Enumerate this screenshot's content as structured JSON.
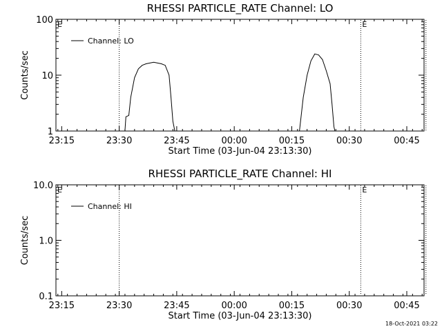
{
  "footer": {
    "timestamp": "18-Oct-2021 03:22"
  },
  "chart_data": [
    {
      "type": "line",
      "title": "RHESSI PARTICLE_RATE Channel: LO",
      "xlabel": "Start Time (03-Jun-04 23:13:30)",
      "ylabel": "Counts/sec",
      "yscale": "log",
      "ylim": [
        1,
        100
      ],
      "yticks": [
        "1",
        "10",
        "100"
      ],
      "xlim_minutes_from_23_15": [
        -1.5,
        94.5
      ],
      "xticks": [
        "23:15",
        "23:30",
        "23:45",
        "00:00",
        "00:15",
        "00:30",
        "00:45"
      ],
      "legend": {
        "label": "Channel: LO",
        "placement": "top-left"
      },
      "marker_lines": [
        {
          "time": "23:30",
          "flag": ""
        },
        {
          "time": "00:33",
          "flag": "E"
        },
        {
          "time": "00:50",
          "flag": ""
        }
      ],
      "corner_flag": "E",
      "series": [
        {
          "name": "Channel: LO",
          "points": [
            [
              "23:31:30",
              1.0
            ],
            [
              "23:31:45",
              1.8
            ],
            [
              "23:32:30",
              1.9
            ],
            [
              "23:33:00",
              4.0
            ],
            [
              "23:34:00",
              9.0
            ],
            [
              "23:35:00",
              13.0
            ],
            [
              "23:36:00",
              15.0
            ],
            [
              "23:37:00",
              16.0
            ],
            [
              "23:38:00",
              16.5
            ],
            [
              "23:39:00",
              17.0
            ],
            [
              "23:40:00",
              16.5
            ],
            [
              "23:41:00",
              16.0
            ],
            [
              "23:42:00",
              15.0
            ],
            [
              "23:43:00",
              10.0
            ],
            [
              "23:43:30",
              4.0
            ],
            [
              "23:44:00",
              1.5
            ],
            [
              "23:44:30",
              1.0
            ]
          ]
        },
        {
          "name": "Channel: LO",
          "points": [
            [
              "00:17:00",
              1.0
            ],
            [
              "00:18:00",
              4.0
            ],
            [
              "00:19:00",
              10.0
            ],
            [
              "00:20:00",
              18.0
            ],
            [
              "00:21:00",
              24.0
            ],
            [
              "00:22:00",
              23.0
            ],
            [
              "00:23:00",
              19.0
            ],
            [
              "00:24:00",
              12.0
            ],
            [
              "00:25:00",
              7.0
            ],
            [
              "00:25:30",
              3.0
            ],
            [
              "00:26:00",
              1.2
            ],
            [
              "00:26:15",
              1.0
            ]
          ]
        }
      ]
    },
    {
      "type": "line",
      "title": "RHESSI PARTICLE_RATE Channel: HI",
      "xlabel": "Start Time (03-Jun-04 23:13:30)",
      "ylabel": "Counts/sec",
      "yscale": "log",
      "ylim": [
        0.1,
        10
      ],
      "yticks": [
        "0.1",
        "1.0",
        "10.0"
      ],
      "xlim_minutes_from_23_15": [
        -1.5,
        94.5
      ],
      "xticks": [
        "23:15",
        "23:30",
        "23:45",
        "00:00",
        "00:15",
        "00:30",
        "00:45"
      ],
      "legend": {
        "label": "Channel: HI",
        "placement": "top-left"
      },
      "marker_lines": [
        {
          "time": "23:30",
          "flag": ""
        },
        {
          "time": "00:33",
          "flag": "E"
        },
        {
          "time": "00:50",
          "flag": ""
        }
      ],
      "corner_flag": "E",
      "series": [
        {
          "name": "Channel: HI",
          "points": []
        }
      ]
    }
  ]
}
